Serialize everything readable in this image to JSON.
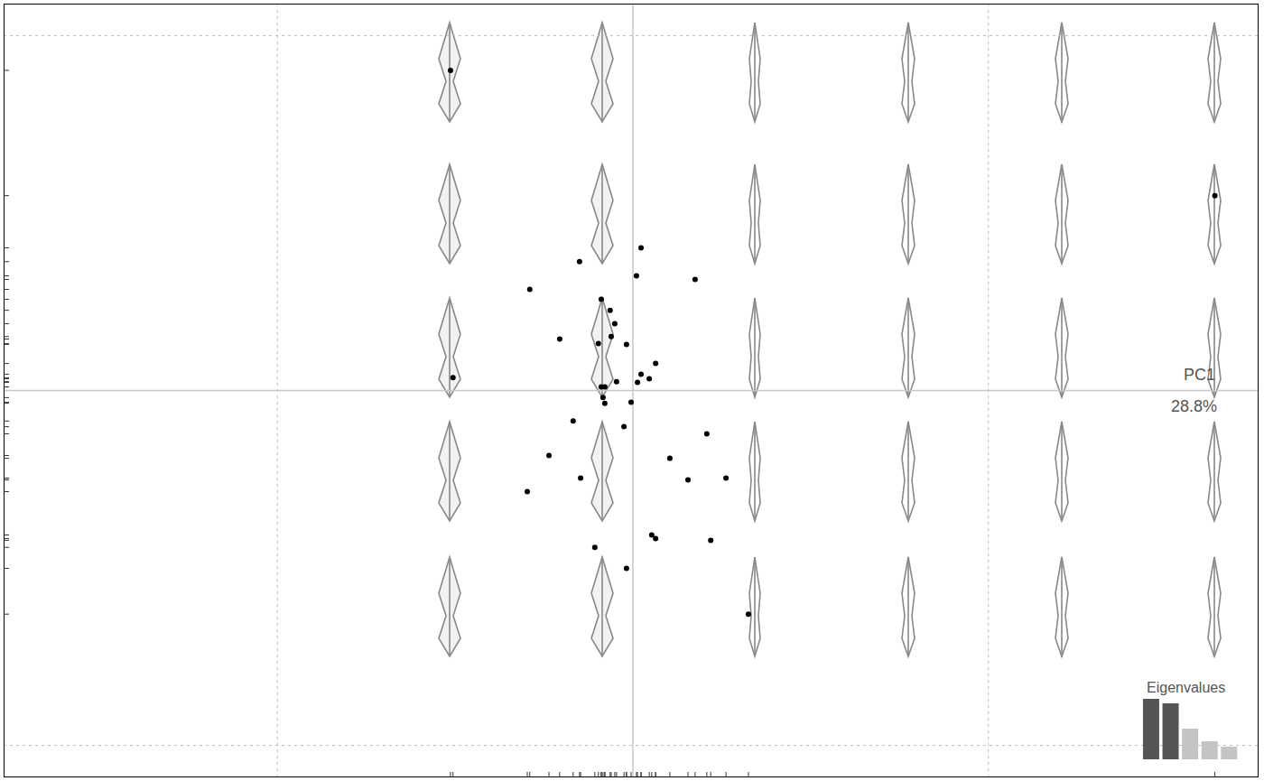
{
  "chart_data": [
    {
      "type": "scatter",
      "xlabel": "PC1",
      "annotations": [
        "28.8%"
      ],
      "x": [
        -0.0513,
        0.1637,
        0.0023,
        -0.015,
        0.001,
        0.0175,
        -0.029,
        -0.0089,
        -0.0064,
        -0.0051,
        -0.0206,
        -0.0061,
        -0.0097,
        -0.0018,
        0.0064,
        0.0023,
        0.0046,
        -0.0506,
        -0.0046,
        0.0013,
        -0.0089,
        -0.0079,
        -0.0084,
        -0.0079,
        -0.0005,
        -0.0168,
        -0.0025,
        0.0208,
        -0.0236,
        0.0104,
        -0.0147,
        0.0155,
        0.0262,
        -0.0297,
        0.0053,
        0.0064,
        0.0219,
        -0.0107,
        -0.0018,
        0.0325
      ],
      "values": [
        0.0902,
        0.0549,
        0.0402,
        0.0363,
        0.0323,
        0.0313,
        0.0285,
        0.0257,
        0.0226,
        0.0188,
        0.0145,
        0.0152,
        0.0132,
        0.013,
        0.0076,
        0.0046,
        0.0033,
        0.0036,
        0.0025,
        0.0023,
        0.001,
        0.001,
        -0.002,
        -0.0036,
        -0.0033,
        -0.0086,
        -0.0102,
        -0.0122,
        -0.0183,
        -0.0191,
        -0.0247,
        -0.0252,
        -0.0247,
        -0.0285,
        -0.0407,
        -0.0417,
        -0.0422,
        -0.0442,
        -0.0501,
        -0.063
      ],
      "color": "#000000",
      "xlim": [
        -0.177,
        0.176
      ],
      "ylim": [
        -0.109,
        0.109
      ],
      "xticks": [
        -0.1,
        0,
        0.1
      ],
      "yticks": [
        -0.1,
        0,
        0.1
      ],
      "grid": true,
      "tick_labels": false
    },
    {
      "type": "bar",
      "title": "Eigenvalues",
      "values": [
        28.8,
        26.6,
        14.6,
        8.6,
        6.0
      ],
      "colors": [
        "#555555",
        "#555555",
        "#c4c4c4",
        "#c4c4c4",
        "#c4c4c4"
      ],
      "ylim": [
        0,
        28.8
      ],
      "tick_labels": false
    }
  ]
}
